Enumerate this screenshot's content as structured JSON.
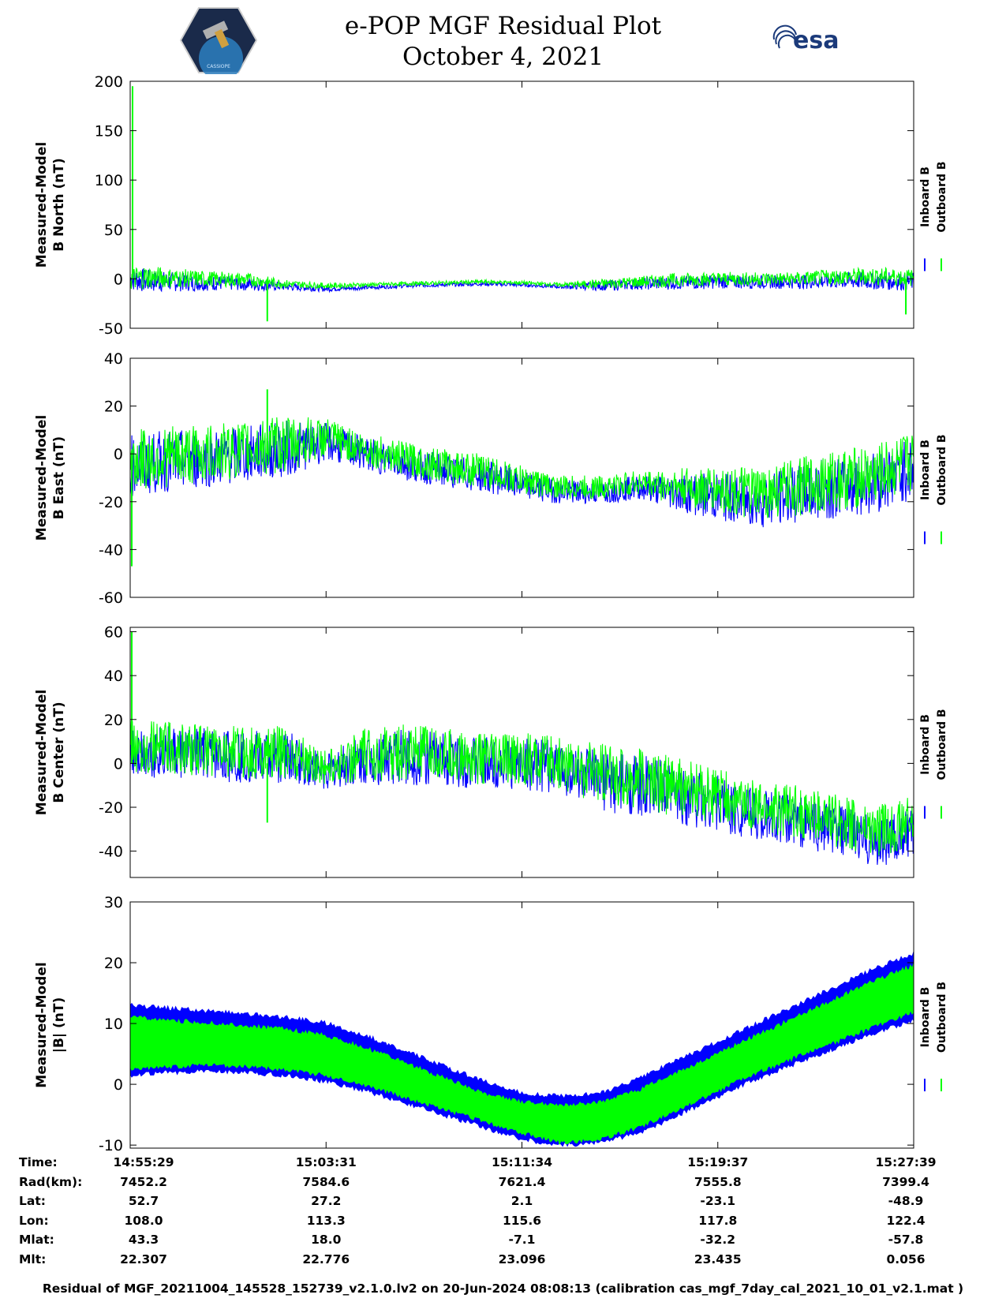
{
  "header": {
    "title_line1": "e-POP MGF Residual Plot",
    "title_line2": "October 4, 2021",
    "logo_left": "cassiope-mission-logo",
    "logo_right_text": "esa",
    "logo_left_caption": "CASSIOPE"
  },
  "colors": {
    "inboard": "#0000ff",
    "outboard": "#00ff00",
    "axis": "#000000"
  },
  "chart_data": [
    {
      "type": "line",
      "ylabel_line1": "Measured-Model",
      "ylabel_line2": "B North (nT)",
      "ylim": [
        -50,
        200
      ],
      "yticks": [
        -50,
        0,
        50,
        100,
        150,
        200
      ],
      "xlabel": "",
      "legend": [
        "Inboard B",
        "Outboard B"
      ],
      "series": [
        {
          "name": "Inboard B",
          "x_frac": [
            0,
            0.02,
            0.05,
            0.1,
            0.15,
            0.2,
            0.25,
            0.3,
            0.35,
            0.4,
            0.45,
            0.5,
            0.55,
            0.6,
            0.65,
            0.7,
            0.75,
            0.8,
            0.85,
            0.9,
            0.95,
            1.0
          ],
          "values": [
            0,
            -2,
            -3,
            -4,
            -5,
            -8,
            -10,
            -9,
            -7,
            -6,
            -5,
            -6,
            -8,
            -7,
            -5,
            -4,
            -3,
            -3,
            -3,
            -2,
            -2,
            -3
          ]
        },
        {
          "name": "Outboard B",
          "x_frac": [
            0,
            0.02,
            0.05,
            0.1,
            0.15,
            0.2,
            0.25,
            0.3,
            0.35,
            0.4,
            0.45,
            0.5,
            0.55,
            0.6,
            0.65,
            0.7,
            0.75,
            0.8,
            0.85,
            0.9,
            0.95,
            1.0
          ],
          "values": [
            0,
            2,
            1,
            0,
            -1,
            -5,
            -7,
            -6,
            -5,
            -4,
            -3,
            -4,
            -6,
            -5,
            -3,
            -1,
            0,
            0,
            0,
            2,
            3,
            1
          ]
        }
      ],
      "amplitude": [
        12,
        12,
        10,
        8,
        7,
        4,
        3,
        2,
        2,
        2,
        2,
        2,
        2,
        5,
        6,
        7,
        7,
        7,
        7,
        8,
        9,
        9
      ],
      "spikes": [
        {
          "x_frac": 0.003,
          "value": 195
        },
        {
          "x_frac": 0.175,
          "value": -43
        },
        {
          "x_frac": 0.99,
          "value": -36
        }
      ]
    },
    {
      "type": "line",
      "ylabel_line1": "Measured-Model",
      "ylabel_line2": "B East (nT)",
      "ylim": [
        -60,
        40
      ],
      "yticks": [
        -60,
        -40,
        -20,
        0,
        20,
        40
      ],
      "xlabel": "",
      "legend": [
        "Inboard B",
        "Outboard B"
      ],
      "series": [
        {
          "name": "Inboard B",
          "x_frac": [
            0,
            0.05,
            0.1,
            0.15,
            0.2,
            0.25,
            0.3,
            0.35,
            0.4,
            0.45,
            0.5,
            0.55,
            0.6,
            0.65,
            0.7,
            0.75,
            0.8,
            0.85,
            0.9,
            0.95,
            1.0
          ],
          "values": [
            -5,
            -3,
            -2,
            0,
            2,
            5,
            0,
            -4,
            -7,
            -9,
            -13,
            -16,
            -16,
            -14,
            -16,
            -18,
            -20,
            -17,
            -14,
            -12,
            -6
          ]
        },
        {
          "name": "Outboard B",
          "x_frac": [
            0,
            0.05,
            0.1,
            0.15,
            0.2,
            0.25,
            0.3,
            0.35,
            0.4,
            0.45,
            0.5,
            0.55,
            0.6,
            0.65,
            0.7,
            0.75,
            0.8,
            0.85,
            0.9,
            0.95,
            1.0
          ],
          "values": [
            -3,
            -1,
            0,
            2,
            4,
            7,
            2,
            -2,
            -5,
            -7,
            -11,
            -14,
            -14,
            -12,
            -14,
            -15,
            -17,
            -14,
            -11,
            -9,
            -3
          ]
        }
      ],
      "amplitude": [
        13,
        13,
        12,
        12,
        12,
        8,
        7,
        7,
        7,
        7,
        6,
        5,
        5,
        5,
        8,
        10,
        11,
        12,
        13,
        13,
        13
      ],
      "spikes": [
        {
          "x_frac": 0.002,
          "value": -47
        },
        {
          "x_frac": 0.175,
          "value": 27
        }
      ]
    },
    {
      "type": "line",
      "ylabel_line1": "Measured-Model",
      "ylabel_line2": "B Center (nT)",
      "ylim": [
        -52,
        62
      ],
      "yticks": [
        -40,
        -20,
        0,
        20,
        40,
        60
      ],
      "xlabel": "",
      "legend": [
        "Inboard B",
        "Outboard B"
      ],
      "series": [
        {
          "name": "Inboard B",
          "x_frac": [
            0,
            0.05,
            0.1,
            0.15,
            0.2,
            0.25,
            0.3,
            0.35,
            0.4,
            0.45,
            0.5,
            0.55,
            0.6,
            0.65,
            0.7,
            0.75,
            0.8,
            0.85,
            0.9,
            0.95,
            1.0
          ],
          "values": [
            6,
            5,
            4,
            3,
            3,
            -4,
            2,
            3,
            2,
            0,
            0,
            -2,
            -8,
            -10,
            -14,
            -18,
            -24,
            -26,
            -30,
            -36,
            -32
          ]
        },
        {
          "name": "Outboard B",
          "x_frac": [
            0,
            0.05,
            0.1,
            0.15,
            0.2,
            0.25,
            0.3,
            0.35,
            0.4,
            0.45,
            0.5,
            0.55,
            0.6,
            0.65,
            0.7,
            0.75,
            0.8,
            0.85,
            0.9,
            0.95,
            1.0
          ],
          "values": [
            8,
            7,
            6,
            5,
            5,
            -2,
            4,
            5,
            4,
            2,
            2,
            0,
            -5,
            -7,
            -11,
            -15,
            -20,
            -22,
            -26,
            -31,
            -27
          ]
        }
      ],
      "amplitude": [
        12,
        12,
        12,
        12,
        12,
        8,
        12,
        13,
        12,
        12,
        12,
        12,
        14,
        14,
        14,
        13,
        12,
        12,
        12,
        12,
        12
      ],
      "spikes": [
        {
          "x_frac": 0.002,
          "value": 60
        },
        {
          "x_frac": 0.175,
          "value": -27
        }
      ]
    },
    {
      "type": "area",
      "ylabel_line1": "Measured-Model",
      "ylabel_line2": "|B| (nT)",
      "ylim": [
        -10.5,
        30
      ],
      "yticks": [
        -10,
        0,
        10,
        20,
        30
      ],
      "xlabel": "",
      "legend": [
        "Inboard B",
        "Outboard B"
      ],
      "series": [
        {
          "name": "Inboard B",
          "x_frac": [
            0,
            0.05,
            0.1,
            0.15,
            0.2,
            0.25,
            0.3,
            0.35,
            0.4,
            0.45,
            0.5,
            0.55,
            0.6,
            0.65,
            0.7,
            0.75,
            0.8,
            0.85,
            0.9,
            0.95,
            1.0
          ],
          "upper": [
            13,
            12.5,
            12,
            11.5,
            11,
            10,
            8,
            5.5,
            3,
            0.5,
            -1.5,
            -2,
            -1.5,
            1,
            4,
            7,
            10,
            13,
            16,
            19,
            21.5
          ],
          "lower": [
            1.5,
            2,
            2.2,
            2,
            1.5,
            0.5,
            -1,
            -3,
            -5,
            -7,
            -9,
            -10,
            -9.5,
            -8,
            -5,
            -2,
            1,
            3.5,
            6,
            8.5,
            10.5
          ]
        },
        {
          "name": "Outboard B",
          "x_frac": [
            0,
            0.05,
            0.1,
            0.15,
            0.2,
            0.25,
            0.3,
            0.35,
            0.4,
            0.45,
            0.5,
            0.55,
            0.6,
            0.65,
            0.7,
            0.75,
            0.8,
            0.85,
            0.9,
            0.95,
            1.0
          ],
          "upper": [
            11,
            10.5,
            10,
            9.5,
            9,
            8,
            6,
            3.5,
            1,
            -1.5,
            -3,
            -3.5,
            -3,
            -1,
            2,
            5,
            8,
            11,
            14,
            17,
            19.5
          ],
          "lower": [
            2.5,
            3,
            3.2,
            3,
            2.5,
            1.5,
            0,
            -2,
            -4,
            -6,
            -8,
            -9.5,
            -9,
            -7,
            -4,
            -1,
            2,
            4.5,
            7,
            9.5,
            12
          ]
        }
      ]
    }
  ],
  "x_axis": {
    "tick_labels": [
      "14:55:29",
      "15:03:31",
      "15:11:34",
      "15:19:37",
      "15:27:39"
    ],
    "tick_fracs": [
      0,
      0.25,
      0.5,
      0.75,
      1.0
    ]
  },
  "info_table": {
    "rows": [
      {
        "label": "Time:",
        "values": [
          "14:55:29",
          "15:03:31",
          "15:11:34",
          "15:19:37",
          "15:27:39"
        ]
      },
      {
        "label": "Rad(km):",
        "values": [
          "7452.2",
          "7584.6",
          "7621.4",
          "7555.8",
          "7399.4"
        ]
      },
      {
        "label": "Lat:",
        "values": [
          "52.7",
          "27.2",
          "2.1",
          "-23.1",
          "-48.9"
        ]
      },
      {
        "label": "Lon:",
        "values": [
          "108.0",
          "113.3",
          "115.6",
          "117.8",
          "122.4"
        ]
      },
      {
        "label": "Mlat:",
        "values": [
          "43.3",
          "18.0",
          "-7.1",
          "-32.2",
          "-57.8"
        ]
      },
      {
        "label": "Mlt:",
        "values": [
          "22.307",
          "22.776",
          "23.096",
          "23.435",
          "0.056"
        ]
      }
    ]
  },
  "footer": "Residual of MGF_20211004_145528_152739_v2.1.0.lv2 on 20-Jun-2024 08:08:13 (calibration cas_mgf_7day_cal_2021_10_01_v2.1.mat )"
}
